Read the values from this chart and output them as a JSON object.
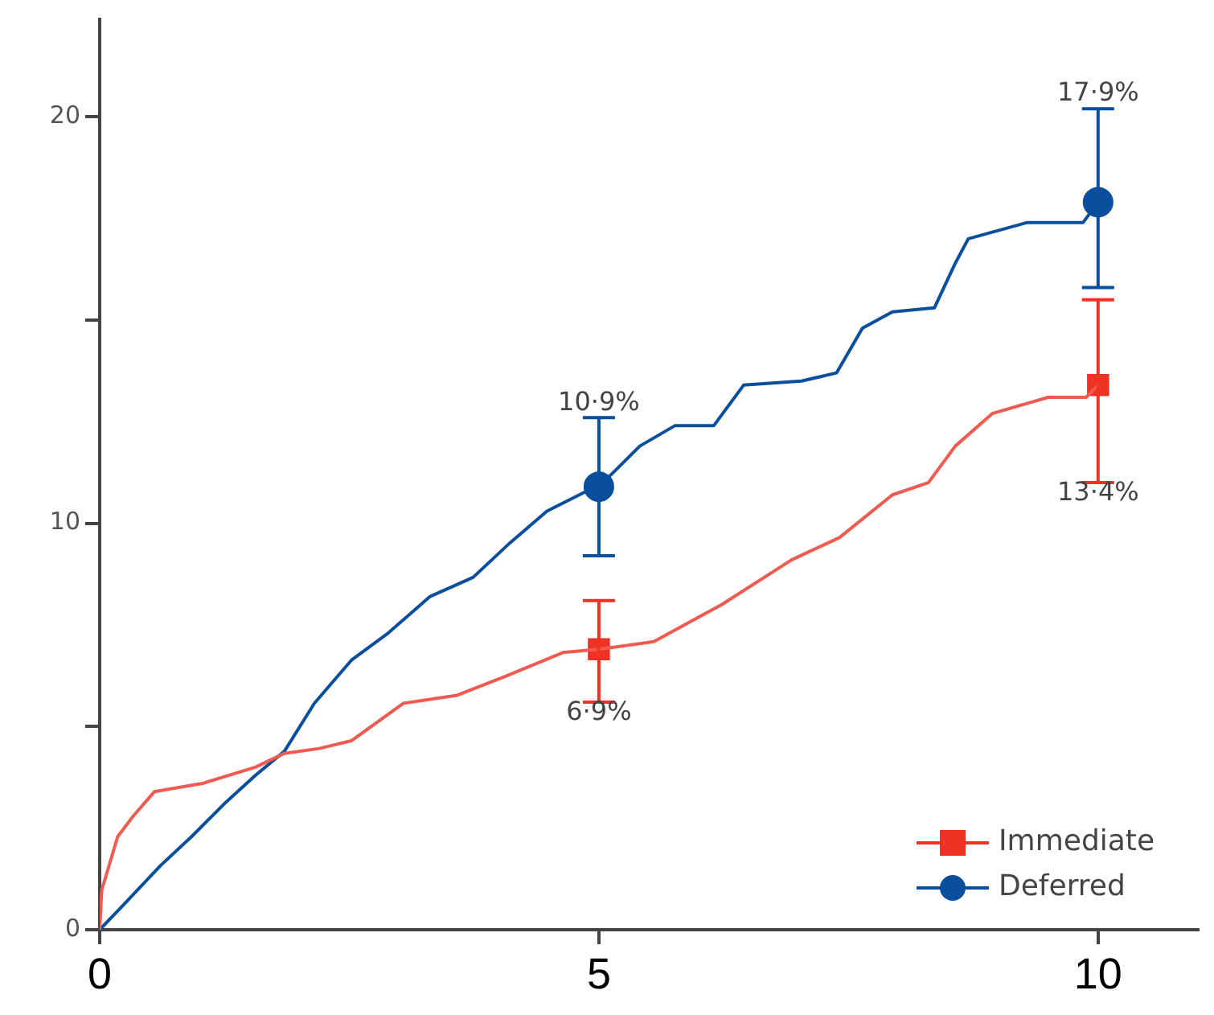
{
  "chart_data": {
    "type": "line",
    "xlim": [
      0,
      11
    ],
    "xticks": [
      0,
      5,
      10
    ],
    "ylim": [
      0,
      22.4
    ],
    "yticks": [
      0,
      {
        "value": 5,
        "label": null
      },
      10,
      {
        "value": 15,
        "label": null
      },
      20
    ],
    "grid": false,
    "legend": "bottom right",
    "series": [
      {
        "type": "line",
        "color": "#f05a50",
        "x": [
          0,
          0.02,
          0.18,
          0.34,
          0.55,
          1.03,
          1.56,
          1.85,
          2.2,
          2.52,
          3.04,
          3.58,
          4.06,
          4.64,
          5,
          5.55,
          6.23,
          6.93,
          7.41,
          7.94,
          8.3,
          8.57,
          8.94,
          9.5,
          9.88,
          10
        ],
        "values": [
          0,
          0.97,
          2.29,
          2.81,
          3.4,
          3.6,
          4.0,
          4.34,
          4.46,
          4.65,
          5.57,
          5.77,
          6.23,
          6.82,
          6.9,
          7.09,
          8.0,
          9.1,
          9.65,
          10.7,
          11.0,
          11.9,
          12.7,
          13.1,
          13.1,
          13.4
        ]
      },
      {
        "type": "line",
        "color": "#0a4f9e",
        "x": [
          0,
          0.23,
          0.61,
          0.92,
          1.24,
          1.56,
          1.85,
          2.15,
          2.52,
          2.89,
          3.31,
          3.74,
          4.11,
          4.48,
          4.86,
          5,
          5.41,
          5.76,
          6.15,
          6.45,
          7.03,
          7.38,
          7.64,
          7.94,
          8.36,
          8.57,
          8.7,
          9.29,
          9.85,
          10
        ],
        "values": [
          0,
          0.59,
          1.58,
          2.29,
          3.08,
          3.8,
          4.39,
          5.57,
          6.63,
          7.3,
          8.2,
          8.67,
          9.52,
          10.3,
          10.77,
          10.9,
          11.9,
          12.4,
          12.4,
          13.4,
          13.5,
          13.7,
          14.8,
          15.2,
          15.3,
          16.4,
          17.0,
          17.4,
          17.4,
          17.9
        ]
      },
      {
        "type": "scatter",
        "name": "Immediate",
        "color": "#ee3224",
        "marker": "square",
        "x": [
          5,
          10
        ],
        "values": [
          6.9,
          13.4
        ],
        "errors": [
          [
            5.6,
            8.1
          ],
          [
            11.0,
            15.5
          ]
        ],
        "value_labels": [
          "6·9%",
          "13·4%"
        ]
      },
      {
        "type": "scatter",
        "name": "Deferred",
        "color": "#0a4f9e",
        "marker": "circle",
        "x": [
          5,
          10
        ],
        "values": [
          10.9,
          17.9
        ],
        "errors": [
          [
            9.2,
            12.6
          ],
          [
            15.8,
            20.2
          ]
        ],
        "value_labels": [
          "10·9%",
          "17·9%"
        ]
      }
    ]
  }
}
